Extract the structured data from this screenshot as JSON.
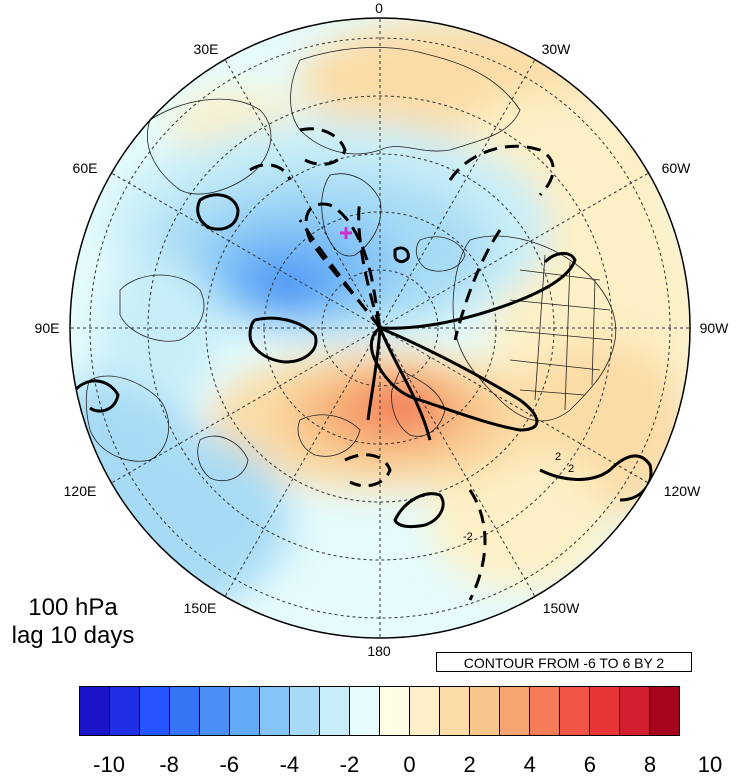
{
  "title": {
    "line1": "100 hPa",
    "line2": "lag 10 days"
  },
  "contour_note": "CONTOUR FROM -6 TO 6 BY 2",
  "longitude_labels": {
    "top": "0",
    "upper_left": "30E",
    "upper_right": "30W",
    "left_upper": "60E",
    "right_upper": "60W",
    "left": "90E",
    "right": "90W",
    "left_lower": "120E",
    "right_lower": "120W",
    "lower_left": "150E",
    "lower_right": "150W",
    "bottom": "180"
  },
  "contour_labels": [
    "2",
    "-2",
    "2"
  ],
  "colorbar": {
    "colors": [
      "#1c14c8",
      "#1f2fe6",
      "#2555ff",
      "#3574f4",
      "#4a8ff4",
      "#62acf7",
      "#85c4f7",
      "#a7dbf5",
      "#c7eef8",
      "#e5fbfc",
      "#fffde3",
      "#fdf0c6",
      "#fbdca6",
      "#f8c58a",
      "#f6a470",
      "#f47c58",
      "#f05444",
      "#e93535",
      "#d21e2e",
      "#a5061d"
    ],
    "tick_labels": [
      "-10",
      "-8",
      "-6",
      "-4",
      "-2",
      "0",
      "2",
      "4",
      "6",
      "8",
      "10"
    ]
  },
  "marker_color": "#cc33cc"
}
